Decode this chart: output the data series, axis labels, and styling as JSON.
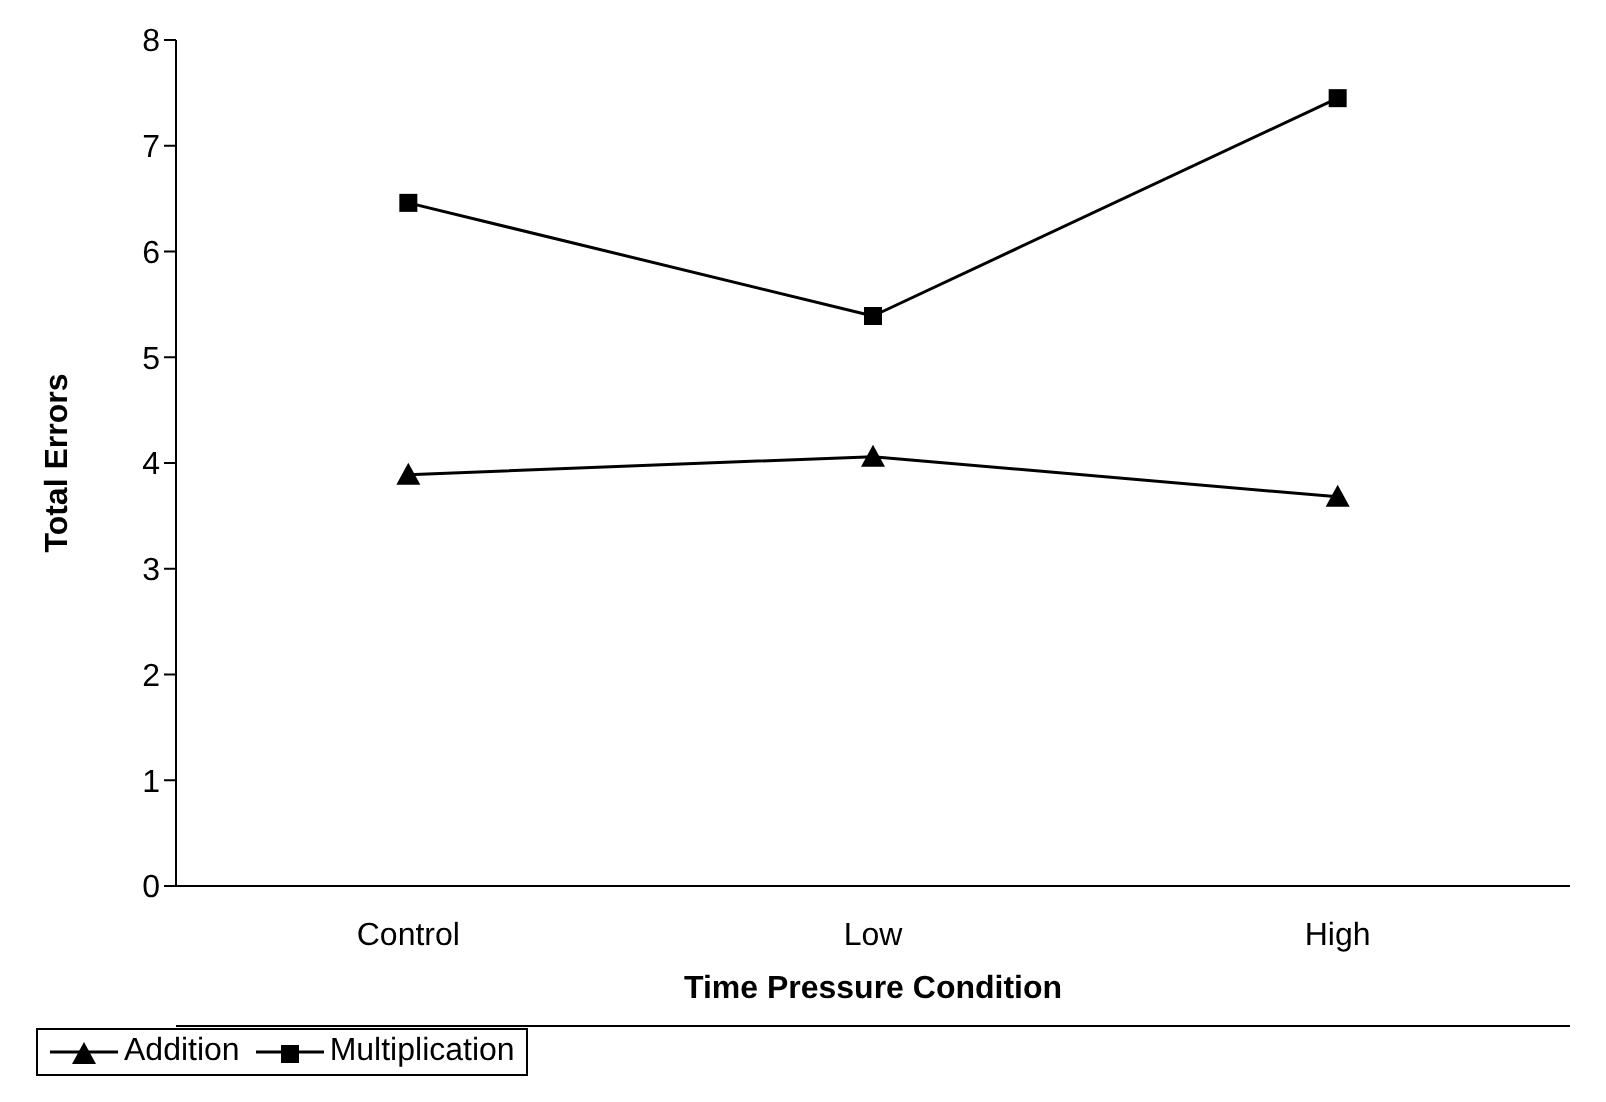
{
  "chart_data": {
    "type": "line",
    "xlabel": "Time Pressure Condition",
    "ylabel": "Total Errors",
    "categories": [
      "Control",
      "Low",
      "High"
    ],
    "series": [
      {
        "name": "Addition",
        "color": "#000000",
        "marker": "triangle",
        "values": [
          3.89,
          4.06,
          3.68
        ]
      },
      {
        "name": "Multiplication",
        "color": "#000000",
        "marker": "square",
        "values": [
          6.46,
          5.39,
          7.45
        ]
      }
    ],
    "ylim": [
      0,
      8
    ],
    "yticks": [
      0,
      1,
      2,
      3,
      4,
      5,
      6,
      7,
      8
    ],
    "grid": false,
    "legend": "bottom",
    "line_style": "solid"
  }
}
